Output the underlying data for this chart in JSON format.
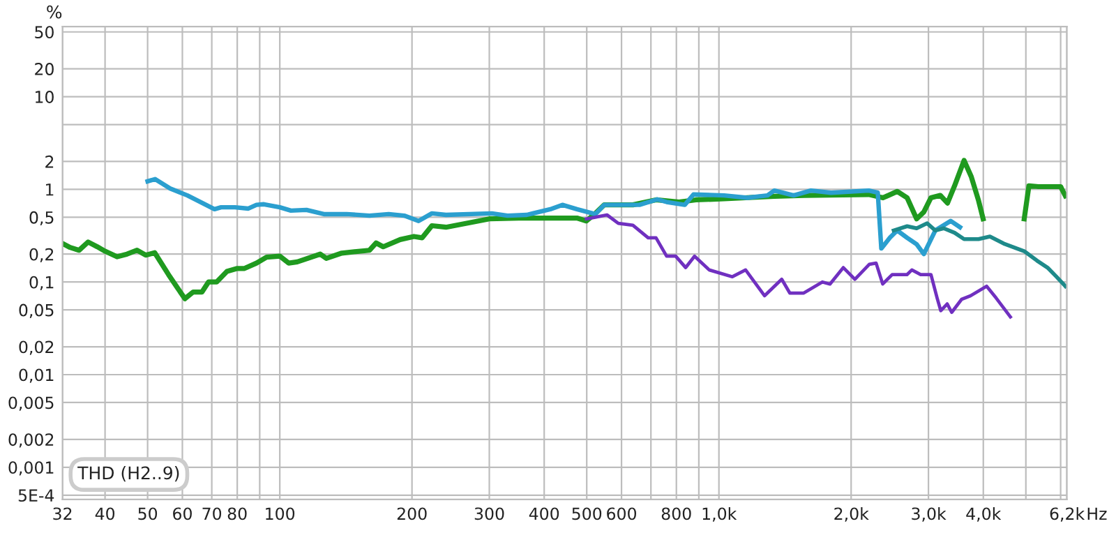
{
  "chart_data": {
    "type": "line",
    "ylabel": "%",
    "xlabel": "Hz",
    "annotations": [
      "THD (H2..9)"
    ],
    "log": "xy",
    "grid": true,
    "marker": "none",
    "line_style": "solid",
    "xlim": [
      32,
      6200
    ],
    "ylim": [
      0.00045,
      57
    ],
    "xticks": [
      32,
      40,
      50,
      60,
      70,
      80,
      {
        "value": 90,
        "label": null
      },
      100,
      200,
      300,
      400,
      500,
      600,
      {
        "value": 700,
        "label": null
      },
      800,
      {
        "value": 900,
        "label": null
      },
      {
        "value": 1000,
        "label": "1,0k"
      },
      {
        "value": 2000,
        "label": "2,0k"
      },
      {
        "value": 3000,
        "label": "3,0k"
      },
      {
        "value": 4000,
        "label": "4,0k"
      },
      {
        "value": 5000,
        "label": null
      },
      {
        "value": 6000,
        "label": null
      },
      {
        "value": 6200,
        "label": "6,2k"
      }
    ],
    "yticks": [
      {
        "value": 0.0005,
        "label": "5E-4"
      },
      {
        "value": 0.001,
        "label": "0,001"
      },
      {
        "value": 0.002,
        "label": "0,002"
      },
      {
        "value": 0.005,
        "label": "0,005"
      },
      {
        "value": 0.01,
        "label": "0,01"
      },
      {
        "value": 0.02,
        "label": "0,02"
      },
      {
        "value": 0.05,
        "label": "0,05"
      },
      {
        "value": 0.1,
        "label": "0,1"
      },
      {
        "value": 0.2,
        "label": "0,2"
      },
      {
        "value": 0.5,
        "label": "0,5"
      },
      1,
      2,
      {
        "value": 5,
        "label": null
      },
      10,
      20,
      50
    ],
    "series": [
      {
        "color": "#1f9a1f",
        "x": [
          32,
          33.3,
          34.9,
          36.6,
          38.4,
          40,
          42.6,
          44.9,
          47.3,
          49.5,
          51.9,
          55.8,
          58.6,
          60.8,
          63.5,
          66.5,
          68.8,
          71.8,
          75.8,
          80,
          83.1,
          88.5,
          93.3,
          100,
          104.8,
          109.6,
          123.6,
          127.6,
          138.4,
          160,
          165.7,
          172,
          188,
          202,
          211,
          222,
          239,
          300,
          350,
          413,
          475,
          499,
          523,
          548,
          637,
          719,
          811,
          886,
          1027,
          1337,
          1564,
          2194,
          2364,
          2547,
          2683,
          2820,
          2928,
          3038,
          3192,
          3315,
          3440,
          3616,
          3755,
          3897,
          3996,
          null,
          4957,
          5080,
          5337,
          6000,
          6150
        ],
        "values": [
          0.26,
          0.236,
          0.22,
          0.27,
          0.24,
          0.215,
          0.187,
          0.2,
          0.22,
          0.195,
          0.207,
          0.12,
          0.085,
          0.066,
          0.078,
          0.078,
          0.1,
          0.1,
          0.13,
          0.14,
          0.14,
          0.16,
          0.185,
          0.19,
          0.16,
          0.165,
          0.2,
          0.18,
          0.205,
          0.22,
          0.264,
          0.24,
          0.287,
          0.31,
          0.3,
          0.405,
          0.39,
          0.48,
          0.49,
          0.49,
          0.49,
          0.456,
          0.55,
          0.68,
          0.68,
          0.77,
          0.73,
          0.77,
          0.79,
          0.84,
          0.86,
          0.88,
          0.81,
          0.95,
          0.81,
          0.48,
          0.57,
          0.81,
          0.86,
          0.71,
          1.09,
          2.05,
          1.37,
          0.77,
          0.48,
          null,
          0.48,
          1.09,
          1.07,
          1.07,
          0.85
        ]
      },
      {
        "color": "#2b9fcf",
        "x": [
          50,
          52,
          56.3,
          61.6,
          67.9,
          71,
          73.5,
          79,
          84.8,
          88.5,
          92,
          100,
          106,
          115,
          126,
          142,
          160,
          177,
          192,
          207,
          222,
          239,
          304,
          330,
          365,
          413,
          440,
          475,
          523,
          548,
          600,
          659,
          724,
          760,
          836,
          875,
          1027,
          1160,
          1290,
          1337,
          1480,
          1620,
          1800,
          2194,
          2300,
          2343,
          2450,
          2547,
          2683,
          2820,
          2928,
          3110,
          3370,
          3540
        ],
        "values": [
          1.22,
          1.29,
          1.02,
          0.86,
          0.68,
          0.61,
          0.64,
          0.64,
          0.62,
          0.68,
          0.69,
          0.64,
          0.59,
          0.6,
          0.54,
          0.54,
          0.52,
          0.54,
          0.52,
          0.456,
          0.55,
          0.53,
          0.55,
          0.52,
          0.53,
          0.61,
          0.68,
          0.61,
          0.54,
          0.68,
          0.68,
          0.68,
          0.78,
          0.73,
          0.68,
          0.88,
          0.86,
          0.81,
          0.86,
          0.97,
          0.86,
          0.97,
          0.92,
          0.97,
          0.92,
          0.23,
          0.3,
          0.36,
          0.3,
          0.255,
          0.2,
          0.36,
          0.456,
          0.39
        ]
      },
      {
        "color": "#1e8a8a",
        "x": [
          2500,
          2683,
          2820,
          2980,
          3110,
          3250,
          3440,
          3616,
          3900,
          4141,
          4450,
          4957,
          5300,
          5600,
          5870,
          6150
        ],
        "values": [
          0.36,
          0.4,
          0.38,
          0.43,
          0.36,
          0.38,
          0.34,
          0.29,
          0.29,
          0.31,
          0.26,
          0.215,
          0.17,
          0.143,
          0.114,
          0.09
        ]
      },
      {
        "color": "#7030c0",
        "x": [
          499,
          523,
          556,
          590,
          637,
          690,
          719,
          760,
          797,
          840,
          880,
          950,
          1073,
          1150,
          1270,
          1390,
          1450,
          1560,
          1720,
          1790,
          1920,
          2040,
          2200,
          2280,
          2360,
          2480,
          2680,
          2750,
          2880,
          3040,
          3140,
          3200,
          3310,
          3389,
          3570,
          3740,
          4070,
          4280,
          4610
        ],
        "values": [
          0.48,
          0.5,
          0.53,
          0.43,
          0.41,
          0.3,
          0.3,
          0.19,
          0.19,
          0.143,
          0.19,
          0.135,
          0.114,
          0.135,
          0.071,
          0.107,
          0.076,
          0.076,
          0.1,
          0.095,
          0.143,
          0.107,
          0.155,
          0.16,
          0.095,
          0.12,
          0.12,
          0.135,
          0.12,
          0.12,
          0.067,
          0.049,
          0.058,
          0.047,
          0.065,
          0.071,
          0.09,
          0.067,
          0.042
        ]
      }
    ]
  }
}
